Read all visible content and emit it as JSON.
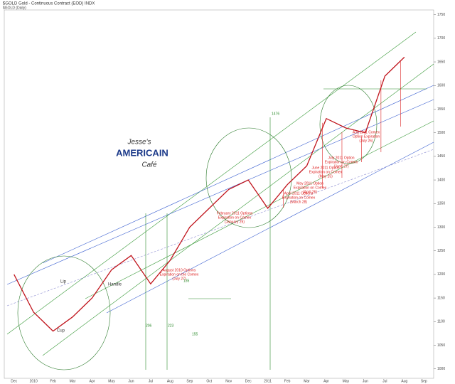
{
  "chart_data": {
    "type": "line",
    "title": "$GOLD Gold - Continuous Contract (EOD) INDX",
    "subtitle": "$GOLD (Daily)",
    "categories": [
      "Dec",
      "2010",
      "Feb",
      "Mar",
      "Apr",
      "May",
      "Jun",
      "Jul",
      "Aug",
      "Sep",
      "Oct",
      "Nov",
      "Dec",
      "2011",
      "Feb",
      "Mar",
      "Apr",
      "May",
      "Jun",
      "Jul",
      "Aug",
      "Sep"
    ],
    "series": [
      {
        "name": "Gold",
        "color": "#c0141c",
        "values": [
          1200,
          1120,
          1080,
          1110,
          1150,
          1210,
          1240,
          1180,
          1230,
          1300,
          1340,
          1380,
          1400,
          1340,
          1390,
          1430,
          1530,
          1510,
          1500,
          1620,
          1660,
          null
        ]
      }
    ],
    "ylim": [
      980,
      1760
    ],
    "yticks": [
      1000,
      1050,
      1100,
      1150,
      1200,
      1250,
      1300,
      1350,
      1400,
      1450,
      1500,
      1550,
      1600,
      1650,
      1700,
      1750
    ],
    "grid": false,
    "labels": [
      "Lip",
      "Cup",
      "Handle",
      "206",
      "223",
      "155",
      "135",
      "1476"
    ],
    "logo": [
      "Jesse's",
      "AMERICAIN",
      "Café"
    ],
    "annotations": [
      [
        "August 2010 Options",
        "Expiration on the Comex",
        "(July 27)"
      ],
      [
        "February 2011 Options",
        "Expiration on Comex",
        "(January 26)"
      ],
      [
        "April 2011 Options",
        "Expiration on Comex",
        "(March 28)"
      ],
      [
        "May 2011 Option",
        "Expiration on Comex",
        "(April 26)"
      ],
      [
        "June 2011 Option",
        "Expiration on Comex",
        "(May 25)"
      ],
      [
        "July 2011 Option",
        "Expiration on Comex",
        "(June 27)"
      ],
      [
        "Aug 2011 Comex",
        "Option Expiration",
        "(July 26)"
      ]
    ]
  }
}
